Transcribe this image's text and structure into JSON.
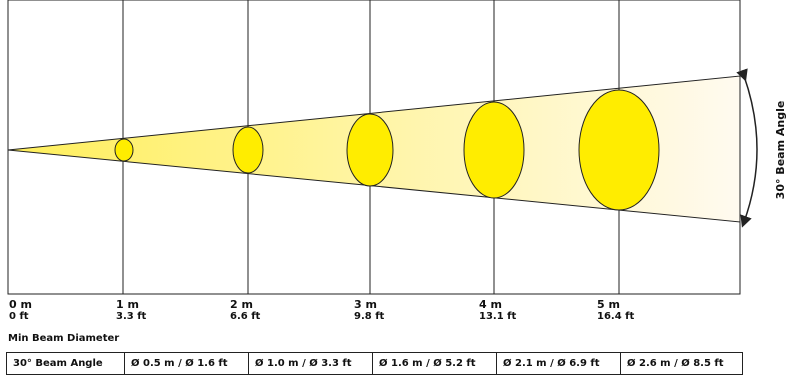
{
  "diagram": {
    "beam_label": "30° Beam Angle",
    "beam_angle_deg": 30,
    "colors": {
      "beam_fill": "#fff2a0",
      "spot_fill": "#ffed00",
      "lines": "#222222"
    },
    "distances": [
      {
        "m": "0 m",
        "ft": "0 ft"
      },
      {
        "m": "1 m",
        "ft": "3.3 ft"
      },
      {
        "m": "2 m",
        "ft": "6.6 ft"
      },
      {
        "m": "3 m",
        "ft": "9.8 ft"
      },
      {
        "m": "4 m",
        "ft": "13.1 ft"
      },
      {
        "m": "5 m",
        "ft": "16.4 ft"
      }
    ]
  },
  "table": {
    "caption": "Min Beam Diameter",
    "row_header": "30° Beam Angle",
    "cells": [
      "Ø 0.5 m / Ø 1.6 ft",
      "Ø 1.0 m / Ø 3.3 ft",
      "Ø 1.6 m / Ø 5.2 ft",
      "Ø 2.1 m / Ø 6.9 ft",
      "Ø 2.6 m / Ø 8.5 ft"
    ]
  }
}
